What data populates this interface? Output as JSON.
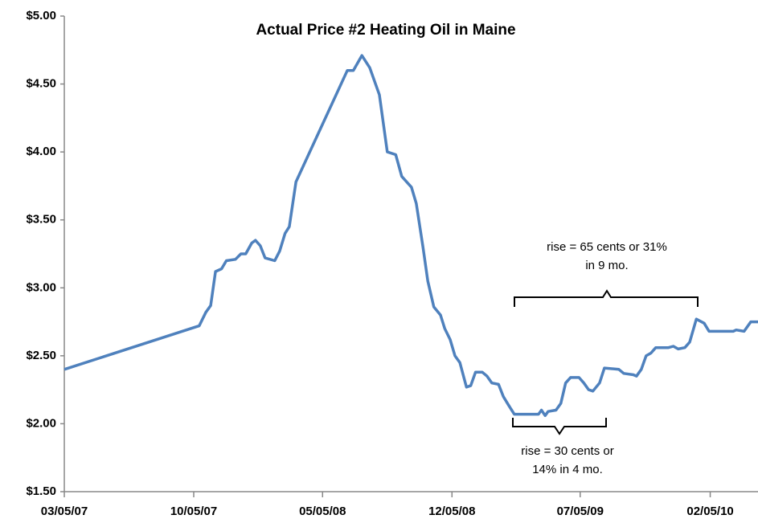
{
  "chart_data": {
    "type": "line",
    "title": "Actual Price #2 Heating Oil in Maine",
    "color": "#4f81bd",
    "x": [
      "03/05/07",
      "10/14/07",
      "10/25/07",
      "11/02/07",
      "11/10/07",
      "11/20/07",
      "11/28/07",
      "12/13/07",
      "12/22/07",
      "12/30/07",
      "01/09/08",
      "01/15/08",
      "01/23/08",
      "01/31/08",
      "02/16/08",
      "02/24/08",
      "03/04/08",
      "03/11/08",
      "03/22/08",
      "06/15/08",
      "06/25/08",
      "07/09/08",
      "07/22/08",
      "08/07/08",
      "08/20/08",
      "09/03/08",
      "09/13/08",
      "09/29/08",
      "10/07/08",
      "10/18/08",
      "10/26/08",
      "11/05/08",
      "11/16/08",
      "11/23/08",
      "12/02/08",
      "12/10/08",
      "12/18/08",
      "12/29/08",
      "01/05/09",
      "01/13/09",
      "01/24/09",
      "02/01/09",
      "02/09/09",
      "02/20/09",
      "02/28/09",
      "03/08/09",
      "03/18/09",
      "04/27/09",
      "05/02/09",
      "05/08/09",
      "05/13/09",
      "05/26/09",
      "06/03/09",
      "06/11/09",
      "06/19/09",
      "07/03/09",
      "07/11/09",
      "07/19/09",
      "07/26/09",
      "08/06/09",
      "08/14/09",
      "09/07/09",
      "09/15/09",
      "10/01/09",
      "10/06/09",
      "10/14/09",
      "10/22/09",
      "10/30/09",
      "11/07/09",
      "11/28/09",
      "12/06/09",
      "12/14/09",
      "12/25/09",
      "01/02/10",
      "01/13/10",
      "01/26/10",
      "02/03/10",
      "03/15/10",
      "03/20/10",
      "04/02/10",
      "04/13/10",
      "04/25/10"
    ],
    "values": [
      2.4,
      2.72,
      2.82,
      2.87,
      3.12,
      3.14,
      3.2,
      3.21,
      3.25,
      3.25,
      3.33,
      3.35,
      3.31,
      3.22,
      3.2,
      3.27,
      3.4,
      3.45,
      3.78,
      4.6,
      4.6,
      4.71,
      4.62,
      4.42,
      4.0,
      3.98,
      3.82,
      3.74,
      3.62,
      3.3,
      3.05,
      2.86,
      2.8,
      2.7,
      2.62,
      2.5,
      2.45,
      2.27,
      2.28,
      2.38,
      2.38,
      2.35,
      2.3,
      2.29,
      2.2,
      2.14,
      2.07,
      2.07,
      2.1,
      2.06,
      2.09,
      2.1,
      2.15,
      2.3,
      2.34,
      2.34,
      2.3,
      2.25,
      2.24,
      2.3,
      2.41,
      2.4,
      2.37,
      2.36,
      2.35,
      2.4,
      2.5,
      2.52,
      2.56,
      2.56,
      2.57,
      2.55,
      2.56,
      2.6,
      2.77,
      2.74,
      2.68,
      2.68,
      2.69,
      2.68,
      2.75,
      2.75
    ],
    "xlim": [
      "03/05/07",
      "04/25/10"
    ],
    "xticks": [
      "03/05/07",
      "10/05/07",
      "05/05/08",
      "12/05/08",
      "07/05/09",
      "02/05/10"
    ],
    "ylim": [
      1.5,
      5
    ],
    "yticks": [
      {
        "value": 1.5,
        "label": "$1.50"
      },
      {
        "value": 2,
        "label": "$2.00"
      },
      {
        "value": 2.5,
        "label": "$2.50"
      },
      {
        "value": 3,
        "label": "$3.00"
      },
      {
        "value": 3.5,
        "label": "$3.50"
      },
      {
        "value": 4,
        "label": "$4.00"
      },
      {
        "value": 4.5,
        "label": "$4.50"
      },
      {
        "value": 5,
        "label": "$5.00"
      }
    ],
    "annotations": [
      [
        "rise =  65 cents or 31%",
        "in  9 mo."
      ],
      [
        "rise = 30 cents or",
        "14% in 4 mo."
      ]
    ]
  }
}
